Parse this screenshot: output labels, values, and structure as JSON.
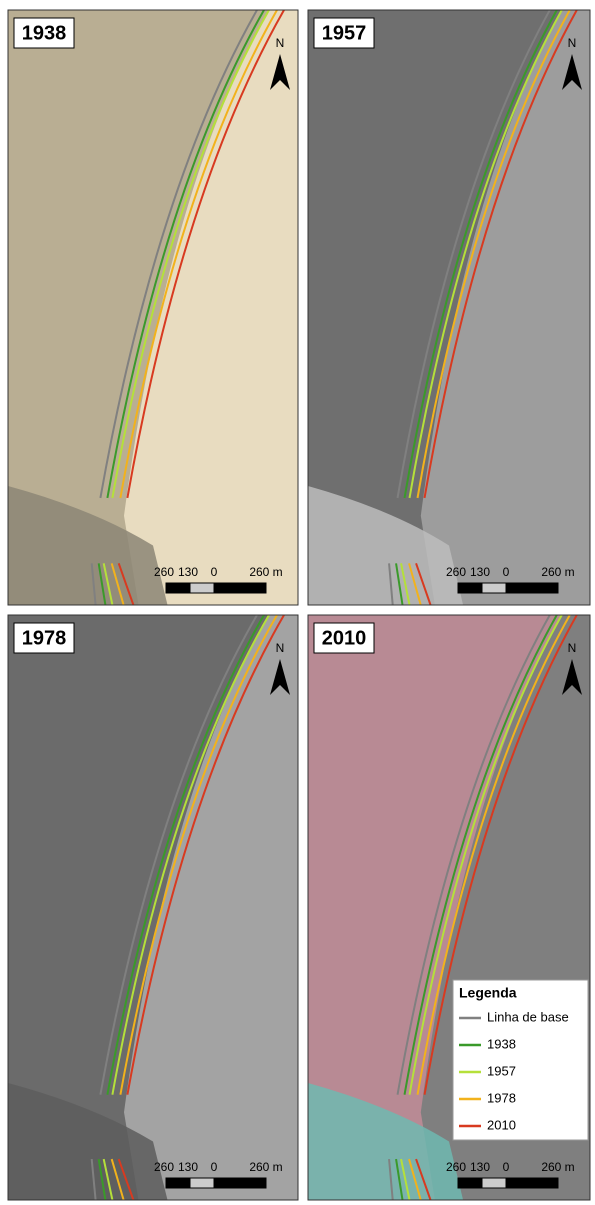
{
  "panels": [
    {
      "title": "1938"
    },
    {
      "title": "1957"
    },
    {
      "title": "1978"
    },
    {
      "title": "2010"
    }
  ],
  "north": "N",
  "scale_bar": {
    "labels": [
      "260",
      "130",
      "0",
      "260 m"
    ]
  },
  "legend": {
    "title": "Legenda",
    "items": [
      {
        "label": "Linha de base",
        "color": "#808080"
      },
      {
        "label": "1938",
        "color": "#3a9a2a"
      },
      {
        "label": "1957",
        "color": "#b5e03a"
      },
      {
        "label": "1978",
        "color": "#f2b21c"
      },
      {
        "label": "2010",
        "color": "#d83a20"
      }
    ]
  }
}
